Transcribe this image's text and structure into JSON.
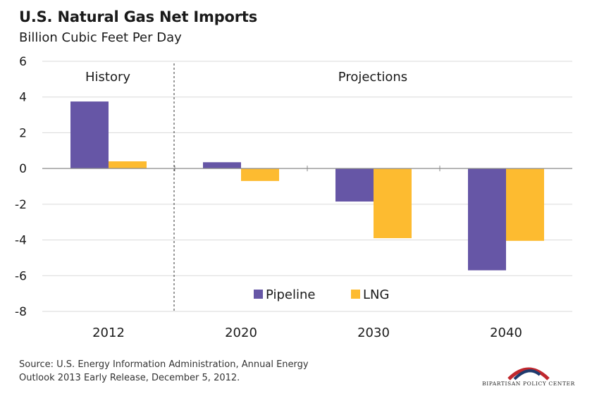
{
  "chart_data": {
    "type": "bar",
    "title": "U.S. Natural Gas Net Imports",
    "subtitle": "Billion Cubic Feet Per Day",
    "categories": [
      "2012",
      "2020",
      "2030",
      "2040"
    ],
    "series": [
      {
        "name": "Pipeline",
        "color": "#6656A6",
        "values": [
          3.75,
          0.35,
          -1.85,
          -5.7
        ]
      },
      {
        "name": "LNG",
        "color": "#FDBB30",
        "values": [
          0.4,
          -0.7,
          -3.9,
          -4.05
        ]
      }
    ],
    "ylim": [
      -8,
      6
    ],
    "yticks": [
      6,
      4,
      2,
      0,
      -2,
      -4,
      -6,
      -8
    ],
    "region_labels": {
      "history": "History",
      "projections": "Projections"
    },
    "legend_position": "bottom-center",
    "grid": true
  },
  "source": {
    "line1": "Source: U.S. Energy Information Administration, Annual Energy",
    "line2": "Outlook 2013 Early Release, December 5, 2012."
  },
  "logo": {
    "text": "BIPARTISAN POLICY CENTER",
    "colors": [
      "#1F3B6E",
      "#C0272D"
    ]
  }
}
